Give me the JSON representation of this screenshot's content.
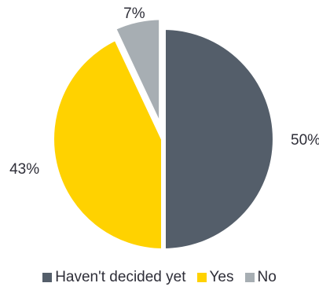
{
  "chart_data": {
    "type": "pie",
    "title": "",
    "slices": [
      {
        "label": "Haven't decided yet",
        "value": 50,
        "value_label": "50%",
        "color": "#545e6a",
        "exploded": false
      },
      {
        "label": "Yes",
        "value": 43,
        "value_label": "43%",
        "color": "#ffd200",
        "exploded": false
      },
      {
        "label": "No",
        "value": 7,
        "value_label": "7%",
        "color": "#a7aeb3",
        "exploded": true
      }
    ],
    "legend_position": "bottom"
  },
  "legend": {
    "items": [
      {
        "label": "Haven't decided yet",
        "color": "#545e6a"
      },
      {
        "label": "Yes",
        "color": "#ffd200"
      },
      {
        "label": "No",
        "color": "#a7aeb3"
      }
    ]
  }
}
